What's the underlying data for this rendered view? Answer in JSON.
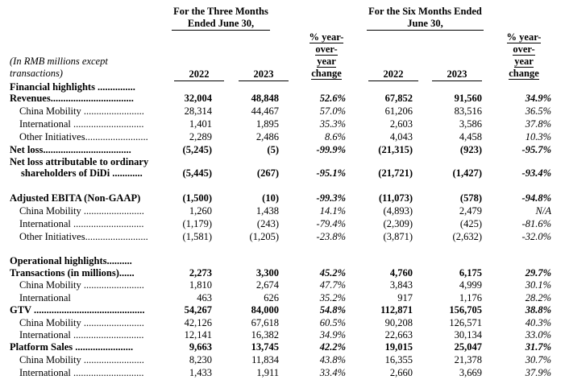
{
  "header": {
    "note": "(In RMB millions except transactions)",
    "groups": [
      "For the Three Months Ended June 30,",
      "For the Six Months Ended June 30,"
    ],
    "change": [
      "% year-over-year change",
      "% year-over-year change"
    ],
    "years": [
      "2022",
      "2023",
      "2022",
      "2023"
    ]
  },
  "table": {
    "rows": [
      {
        "label": "Financial highlights ...............",
        "bold": true
      },
      {
        "label": "Revenues.................................",
        "bold": true,
        "cells": [
          "32,004",
          "48,848",
          "52.6%",
          "67,852",
          "91,560",
          "34.9%"
        ]
      },
      {
        "label": "China Mobility ........................",
        "cells": [
          "28,314",
          "44,467",
          "57.0%",
          "61,206",
          "83,516",
          "36.5%"
        ]
      },
      {
        "label": "International ............................",
        "cells": [
          "1,401",
          "1,895",
          "35.3%",
          "2,603",
          "3,586",
          "37.8%"
        ]
      },
      {
        "label": "Other Initiatives.........................",
        "cells": [
          "2,289",
          "2,486",
          "8.6%",
          "4,043",
          "4,458",
          "10.3%"
        ]
      },
      {
        "label": "Net loss...................................",
        "bold": true,
        "cells": [
          "(5,245)",
          "(5)",
          "-99.9%",
          "(21,315)",
          "(923)",
          "-95.7%"
        ]
      },
      {
        "label": "Net loss attributable to ordinary",
        "bold": true
      },
      {
        "label": "shareholders of DiDi ............",
        "bold": true,
        "indent": true,
        "cells": [
          "(5,445)",
          "(267)",
          "-95.1%",
          "(21,721)",
          "(1,427)",
          "-93.4%"
        ]
      },
      {
        "label": "Adjusted EBITA (Non-GAAP)",
        "bold": true,
        "cells": [
          "(1,500)",
          "(10)",
          "-99.3%",
          "(11,073)",
          "(578)",
          "-94.8%"
        ]
      },
      {
        "label": "China Mobility ........................",
        "cells": [
          "1,260",
          "1,438",
          "14.1%",
          "(4,893)",
          "2,479",
          "N/A"
        ]
      },
      {
        "label": "International ............................",
        "cells": [
          "(1,179)",
          "(243)",
          "-79.4%",
          "(2,309)",
          "(425)",
          "-81.6%"
        ]
      },
      {
        "label": "Other Initiatives.........................",
        "cells": [
          "(1,581)",
          "(1,205)",
          "-23.8%",
          "(3,871)",
          "(2,632)",
          "-32.0%"
        ]
      },
      {
        "label": "Operational highlights..........",
        "bold": true
      },
      {
        "label": "Transactions (in millions)......",
        "bold": true,
        "cells": [
          "2,273",
          "3,300",
          "45.2%",
          "4,760",
          "6,175",
          "29.7%"
        ]
      },
      {
        "label": "China Mobility ........................",
        "cells": [
          "1,810",
          "2,674",
          "47.7%",
          "3,843",
          "4,999",
          "30.1%"
        ]
      },
      {
        "label": "International",
        "cells": [
          "463",
          "626",
          "35.2%",
          "917",
          "1,176",
          "28.2%"
        ]
      },
      {
        "label": "GTV ............................................",
        "bold": true,
        "cells": [
          "54,267",
          "84,000",
          "54.8%",
          "112,871",
          "156,705",
          "38.8%"
        ]
      },
      {
        "label": "China Mobility ........................",
        "cells": [
          "42,126",
          "67,618",
          "60.5%",
          "90,208",
          "126,571",
          "40.3%"
        ]
      },
      {
        "label": "International ............................",
        "cells": [
          "12,141",
          "16,382",
          "34.9%",
          "22,663",
          "30,134",
          "33.0%"
        ]
      },
      {
        "label": "Platform Sales .......................",
        "bold": true,
        "cells": [
          "9,663",
          "13,745",
          "42.2%",
          "19,015",
          "25,047",
          "31.7%"
        ]
      },
      {
        "label": "China Mobility ........................",
        "cells": [
          "8,230",
          "11,834",
          "43.8%",
          "16,355",
          "21,378",
          "30.7%"
        ]
      },
      {
        "label": "International ............................",
        "cells": [
          "1,433",
          "1,911",
          "33.4%",
          "2,660",
          "3,669",
          "37.9%"
        ]
      }
    ]
  }
}
